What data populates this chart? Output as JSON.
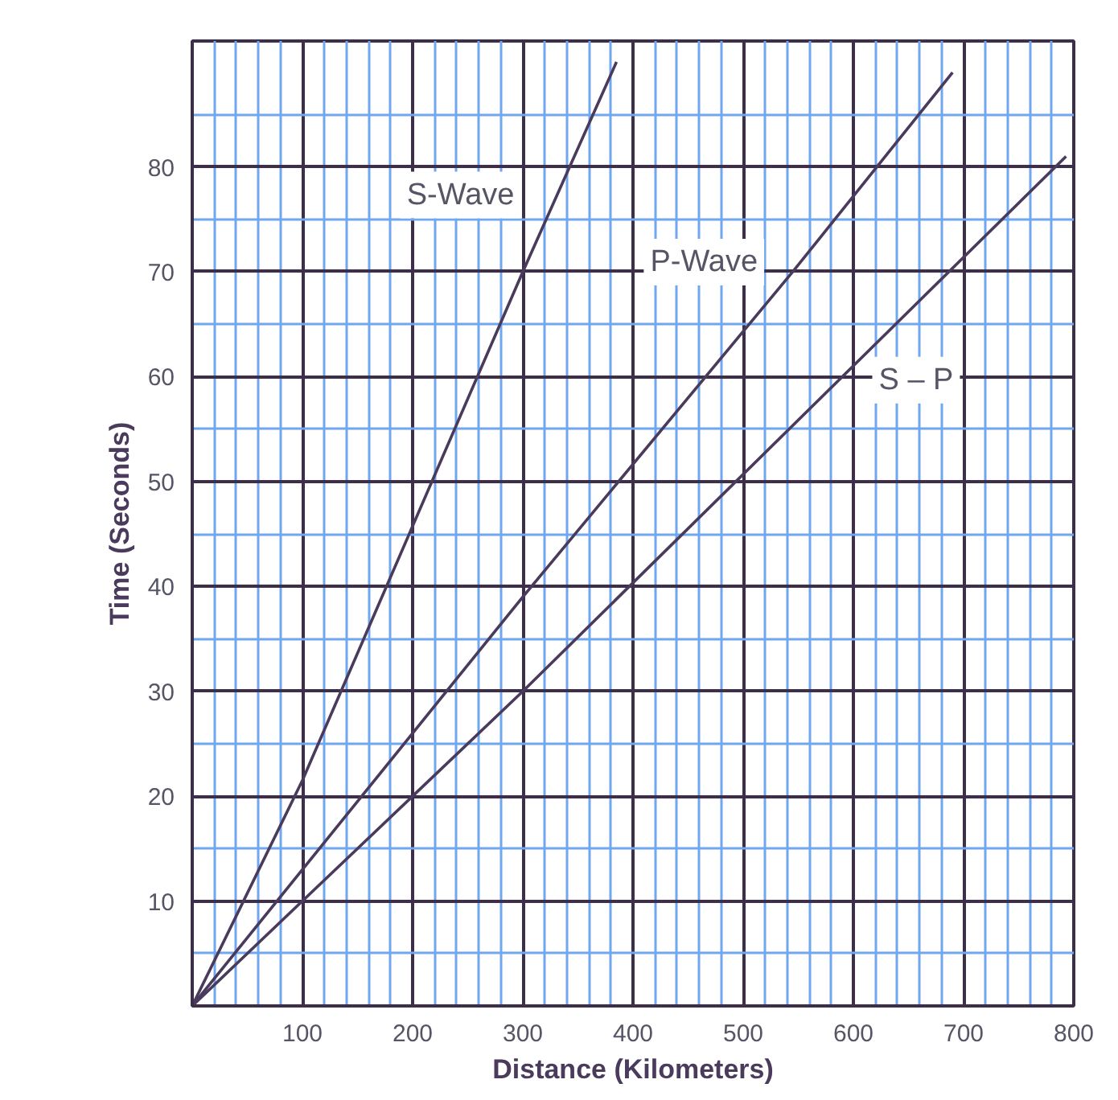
{
  "chart_data": {
    "type": "line",
    "xlabel": "Distance (Kilometers)",
    "ylabel": "Time (Seconds)",
    "xlim": [
      0,
      800
    ],
    "ylim": [
      0,
      92
    ],
    "xticks": [
      {
        "value": 0,
        "label": null
      },
      {
        "value": 20,
        "label": null
      },
      {
        "value": 40,
        "label": null
      },
      {
        "value": 60,
        "label": null
      },
      {
        "value": 80,
        "label": null
      },
      100,
      {
        "value": 120,
        "label": null
      },
      {
        "value": 140,
        "label": null
      },
      {
        "value": 160,
        "label": null
      },
      {
        "value": 180,
        "label": null
      },
      200,
      {
        "value": 220,
        "label": null
      },
      {
        "value": 240,
        "label": null
      },
      {
        "value": 260,
        "label": null
      },
      {
        "value": 280,
        "label": null
      },
      300,
      {
        "value": 320,
        "label": null
      },
      {
        "value": 340,
        "label": null
      },
      {
        "value": 360,
        "label": null
      },
      {
        "value": 380,
        "label": null
      },
      400,
      {
        "value": 420,
        "label": null
      },
      {
        "value": 440,
        "label": null
      },
      {
        "value": 460,
        "label": null
      },
      {
        "value": 480,
        "label": null
      },
      500,
      {
        "value": 520,
        "label": null
      },
      {
        "value": 540,
        "label": null
      },
      {
        "value": 560,
        "label": null
      },
      {
        "value": 580,
        "label": null
      },
      600,
      {
        "value": 620,
        "label": null
      },
      {
        "value": 640,
        "label": null
      },
      {
        "value": 660,
        "label": null
      },
      {
        "value": 680,
        "label": null
      },
      700,
      {
        "value": 720,
        "label": null
      },
      {
        "value": 740,
        "label": null
      },
      {
        "value": 760,
        "label": null
      },
      {
        "value": 780,
        "label": null
      },
      800
    ],
    "yticks": [
      {
        "value": 0,
        "label": null
      },
      {
        "value": 5,
        "label": null
      },
      10,
      {
        "value": 15,
        "label": null
      },
      20,
      {
        "value": 25,
        "label": null
      },
      30,
      {
        "value": 35,
        "label": null
      },
      40,
      {
        "value": 45,
        "label": null
      },
      50,
      {
        "value": 55,
        "label": null
      },
      60,
      {
        "value": 65,
        "label": null
      },
      70,
      {
        "value": 75,
        "label": null
      },
      80,
      {
        "value": 85,
        "label": null
      }
    ],
    "grid": true,
    "marker": "none",
    "line_style": "solid",
    "series": [
      {
        "name": "S-Wave",
        "color": "#4a3a5c",
        "x": [
          0,
          100,
          300,
          385
        ],
        "values": [
          0,
          21.5,
          70,
          90
        ]
      },
      {
        "name": "P-Wave",
        "color": "#4a3a5c",
        "x": [
          0,
          200,
          300,
          545,
          690
        ],
        "values": [
          0,
          26,
          39,
          70,
          89
        ]
      },
      {
        "name": "S – P",
        "color": "#4a3a5c",
        "x": [
          0,
          100,
          200,
          300,
          793
        ],
        "values": [
          0,
          10,
          20,
          30,
          81
        ]
      }
    ]
  }
}
